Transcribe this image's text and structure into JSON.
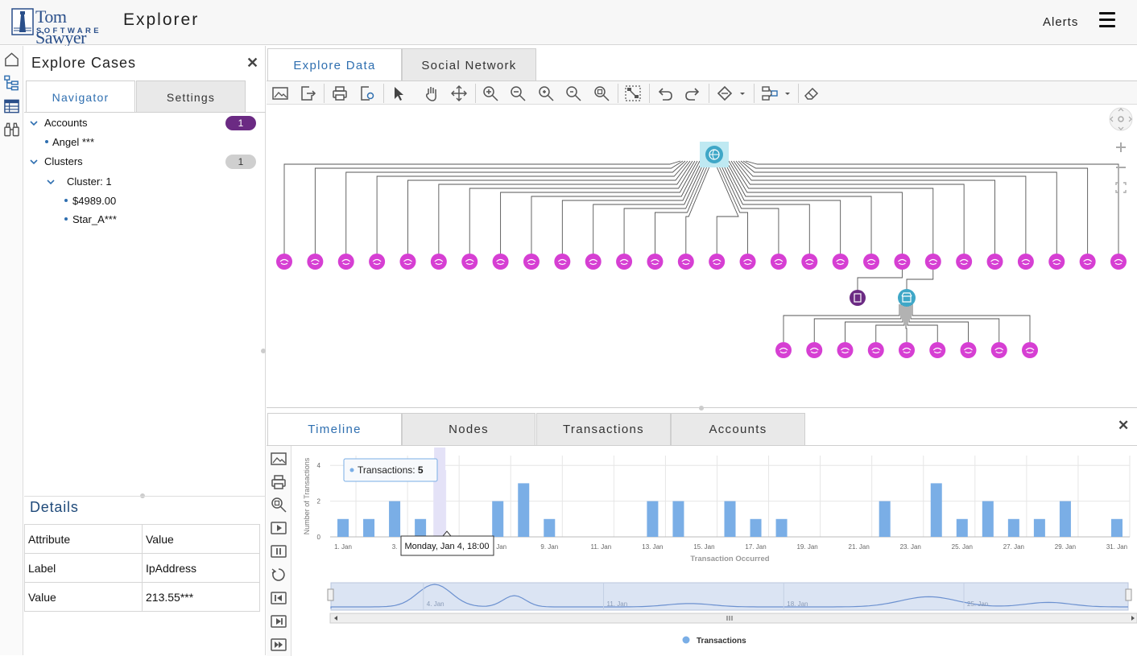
{
  "header": {
    "logo_top": "Tom Sawyer",
    "logo_bottom": "SOFTWARE",
    "app_title": "Explorer",
    "alerts_label": "Alerts"
  },
  "rail": {
    "icons": [
      "home-icon",
      "tree-icon",
      "table-icon",
      "binoculars-icon"
    ]
  },
  "left_panel": {
    "title": "Explore Cases",
    "tabs": [
      {
        "label": "Navigator",
        "active": true
      },
      {
        "label": "Settings",
        "active": false
      }
    ],
    "tree": {
      "accounts": {
        "label": "Accounts",
        "count": "1",
        "children": [
          "Angel ***"
        ]
      },
      "clusters": {
        "label": "Clusters",
        "count": "1",
        "cluster": {
          "label": "Cluster:  1",
          "children": [
            "$4989.00",
            "Star_A***"
          ]
        }
      }
    },
    "details": {
      "title": "Details",
      "header": {
        "attribute": "Attribute",
        "value": "Value"
      },
      "rows": [
        {
          "attribute": "Label",
          "value": "IpAddress"
        },
        {
          "attribute": "Value",
          "value": "213.55***"
        }
      ]
    }
  },
  "main": {
    "tabs": [
      {
        "label": "Explore Data",
        "active": true
      },
      {
        "label": "Social Network",
        "active": false
      }
    ],
    "toolbar_icons": [
      "export-image-icon",
      "export-file-icon",
      "print-icon",
      "print-preview-icon",
      "select-icon",
      "pan-icon",
      "move-icon",
      "zoom-in-icon",
      "zoom-out-icon",
      "zoom-plus-icon",
      "zoom-minus-icon",
      "zoom-fit-icon",
      "layout-icon",
      "undo-icon",
      "redo-icon",
      "paint-icon",
      "layout-options-icon",
      "eraser-icon"
    ],
    "graph": {
      "root": "ip-address-node",
      "top_leaf_count": 28,
      "secondary_nodes": [
        "document-node",
        "store-node"
      ],
      "bottom_leaf_count": 9,
      "colors": {
        "leaf": "#d63fd3",
        "root": "#3fa7c7",
        "document": "#6b2a83",
        "edge": "#555555"
      }
    }
  },
  "bottom_panel": {
    "tabs": [
      {
        "label": "Timeline",
        "active": true
      },
      {
        "label": "Nodes",
        "active": false
      },
      {
        "label": "Transactions",
        "active": false
      },
      {
        "label": "Accounts",
        "active": false
      }
    ],
    "tool_icons": [
      "export-image-icon",
      "print-icon",
      "zoom-icon",
      "play-icon",
      "pause-icon",
      "reset-icon",
      "step-back-icon",
      "step-forward-icon",
      "step-end-icon"
    ]
  },
  "chart_data": {
    "type": "bar",
    "ylabel": "Number of Transactions",
    "xlabel": "Transaction Occurred",
    "ylim": [
      0,
      5
    ],
    "yticks": [
      "0",
      "2",
      "4"
    ],
    "x_tick_labels": [
      "1. Jan",
      "3.",
      "7. Jan",
      "9. Jan",
      "11. Jan",
      "13. Jan",
      "15. Jan",
      "17. Jan",
      "19. Jan",
      "21. Jan",
      "23. Jan",
      "25. Jan",
      "27. Jan",
      "29. Jan",
      "31. Jan"
    ],
    "series": [
      {
        "name": "Transactions",
        "color": "#7aaee6",
        "points": [
          {
            "x": "1 Jan",
            "y": 1
          },
          {
            "x": "2 Jan",
            "y": 1
          },
          {
            "x": "3 Jan",
            "y": 2
          },
          {
            "x": "4 Jan",
            "y": 1
          },
          {
            "x": "4 Jan 18:00",
            "y": 5
          },
          {
            "x": "7 Jan",
            "y": 2
          },
          {
            "x": "8 Jan",
            "y": 3
          },
          {
            "x": "9 Jan",
            "y": 1
          },
          {
            "x": "13 Jan",
            "y": 2
          },
          {
            "x": "14 Jan",
            "y": 2
          },
          {
            "x": "16 Jan",
            "y": 2
          },
          {
            "x": "17 Jan",
            "y": 1
          },
          {
            "x": "18 Jan",
            "y": 1
          },
          {
            "x": "22 Jan",
            "y": 2
          },
          {
            "x": "24 Jan",
            "y": 3
          },
          {
            "x": "25 Jan",
            "y": 1
          },
          {
            "x": "26 Jan",
            "y": 2
          },
          {
            "x": "27 Jan",
            "y": 1
          },
          {
            "x": "28 Jan",
            "y": 1
          },
          {
            "x": "29 Jan",
            "y": 2
          },
          {
            "x": "31 Jan",
            "y": 1
          }
        ]
      }
    ],
    "tooltip": {
      "label": "Transactions:",
      "value": "5"
    },
    "hover_date": "Monday, Jan 4, 18:00",
    "navigator_labels": [
      "4. Jan",
      "11. Jan",
      "18. Jan",
      "25. Jan"
    ],
    "legend": "Transactions",
    "legend_position": "bottom-center"
  }
}
